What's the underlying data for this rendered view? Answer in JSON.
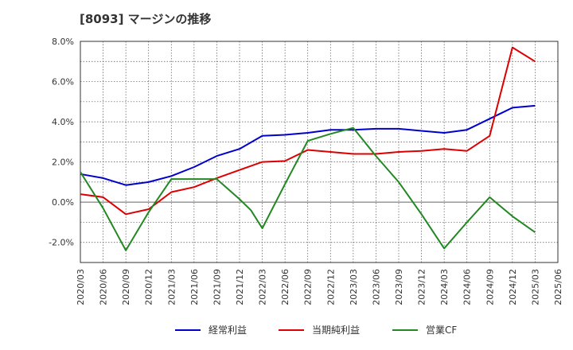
{
  "chart_data": {
    "type": "line",
    "title": "[8093]  マージンの推移",
    "x": [
      "2020/03",
      "2020/06",
      "2020/09",
      "2020/12",
      "2021/03",
      "2021/06",
      "2021/09",
      "2021/12",
      "2022/03",
      "2022/06",
      "2022/09",
      "2022/12",
      "2023/03",
      "2023/06",
      "2023/09",
      "2023/12",
      "2024/03",
      "2024/06",
      "2024/09",
      "2024/12",
      "2025/03"
    ],
    "x_ticks": [
      "2020/03",
      "2020/06",
      "2020/09",
      "2020/12",
      "2021/03",
      "2021/06",
      "2021/09",
      "2021/12",
      "2022/03",
      "2022/06",
      "2022/09",
      "2022/12",
      "2023/03",
      "2023/06",
      "2023/09",
      "2023/12",
      "2024/03",
      "2024/06",
      "2024/09",
      "2024/12",
      "2025/03",
      "2025/06"
    ],
    "y_ticks": [
      "8.0%",
      "6.0%",
      "4.0%",
      "2.0%",
      "0.0%",
      "-2.0%"
    ],
    "y_tick_values": [
      8,
      6,
      4,
      2,
      0,
      -2
    ],
    "ylim": [
      -3,
      8
    ],
    "grid": true,
    "legend_position": "bottom",
    "series": [
      {
        "name": "経常利益",
        "color": "#0000cc",
        "values": [
          1.4,
          1.2,
          0.85,
          1.0,
          1.3,
          1.75,
          2.3,
          2.65,
          3.3,
          3.35,
          3.45,
          3.6,
          3.6,
          3.65,
          3.65,
          3.55,
          3.45,
          3.6,
          4.15,
          4.7,
          4.8
        ]
      },
      {
        "name": "当期純利益",
        "color": "#dd0000",
        "values": [
          0.4,
          0.25,
          -0.6,
          -0.35,
          0.5,
          0.75,
          1.2,
          1.6,
          2.0,
          2.05,
          2.6,
          2.5,
          2.4,
          2.4,
          2.5,
          2.55,
          2.65,
          2.55,
          3.3,
          7.7,
          7.0
        ]
      },
      {
        "name": "営業CF",
        "color": "#228822",
        "values": [
          1.5,
          null,
          -2.4,
          null,
          1.15,
          null,
          1.15,
          null,
          -1.3,
          null,
          3.05,
          null,
          3.7,
          null,
          1.0,
          null,
          -2.3,
          null,
          0.25,
          null,
          -1.5
        ]
      }
    ],
    "extra_points": {
      "営業CF": [
        {
          "x_index": 1,
          "value": -0.3
        },
        {
          "x_index": 3,
          "value": -0.5
        },
        {
          "x_index": 5,
          "value": 1.15
        },
        {
          "x_index": 7,
          "value": 0.15
        },
        {
          "x_index": 7.5,
          "value": -0.4
        },
        {
          "x_index": 9,
          "value": 0.9
        },
        {
          "x_index": 11,
          "value": 3.4
        },
        {
          "x_index": 13,
          "value": 2.3
        },
        {
          "x_index": 15,
          "value": -0.6
        },
        {
          "x_index": 17,
          "value": -1.0
        },
        {
          "x_index": 19,
          "value": -0.7
        }
      ]
    }
  }
}
